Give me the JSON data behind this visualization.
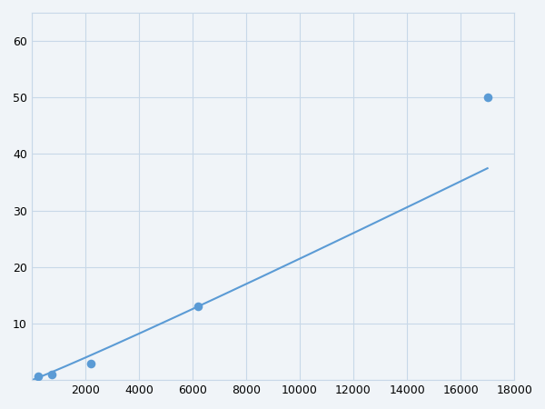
{
  "x_points": [
    250,
    750,
    2200,
    6200,
    17000
  ],
  "y_points": [
    0.7,
    1.0,
    3.0,
    13.0,
    50.0
  ],
  "line_color": "#5b9bd5",
  "marker_color": "#5b9bd5",
  "marker_size": 48,
  "line_width": 1.5,
  "xlim": [
    0,
    18000
  ],
  "ylim": [
    0,
    65
  ],
  "xticks": [
    0,
    2000,
    4000,
    6000,
    8000,
    10000,
    12000,
    14000,
    16000,
    18000
  ],
  "yticks": [
    0,
    10,
    20,
    30,
    40,
    50,
    60
  ],
  "grid_color": "#c8d8e8",
  "background_color": "#f0f4f8",
  "figure_bg": "#f0f4f8"
}
